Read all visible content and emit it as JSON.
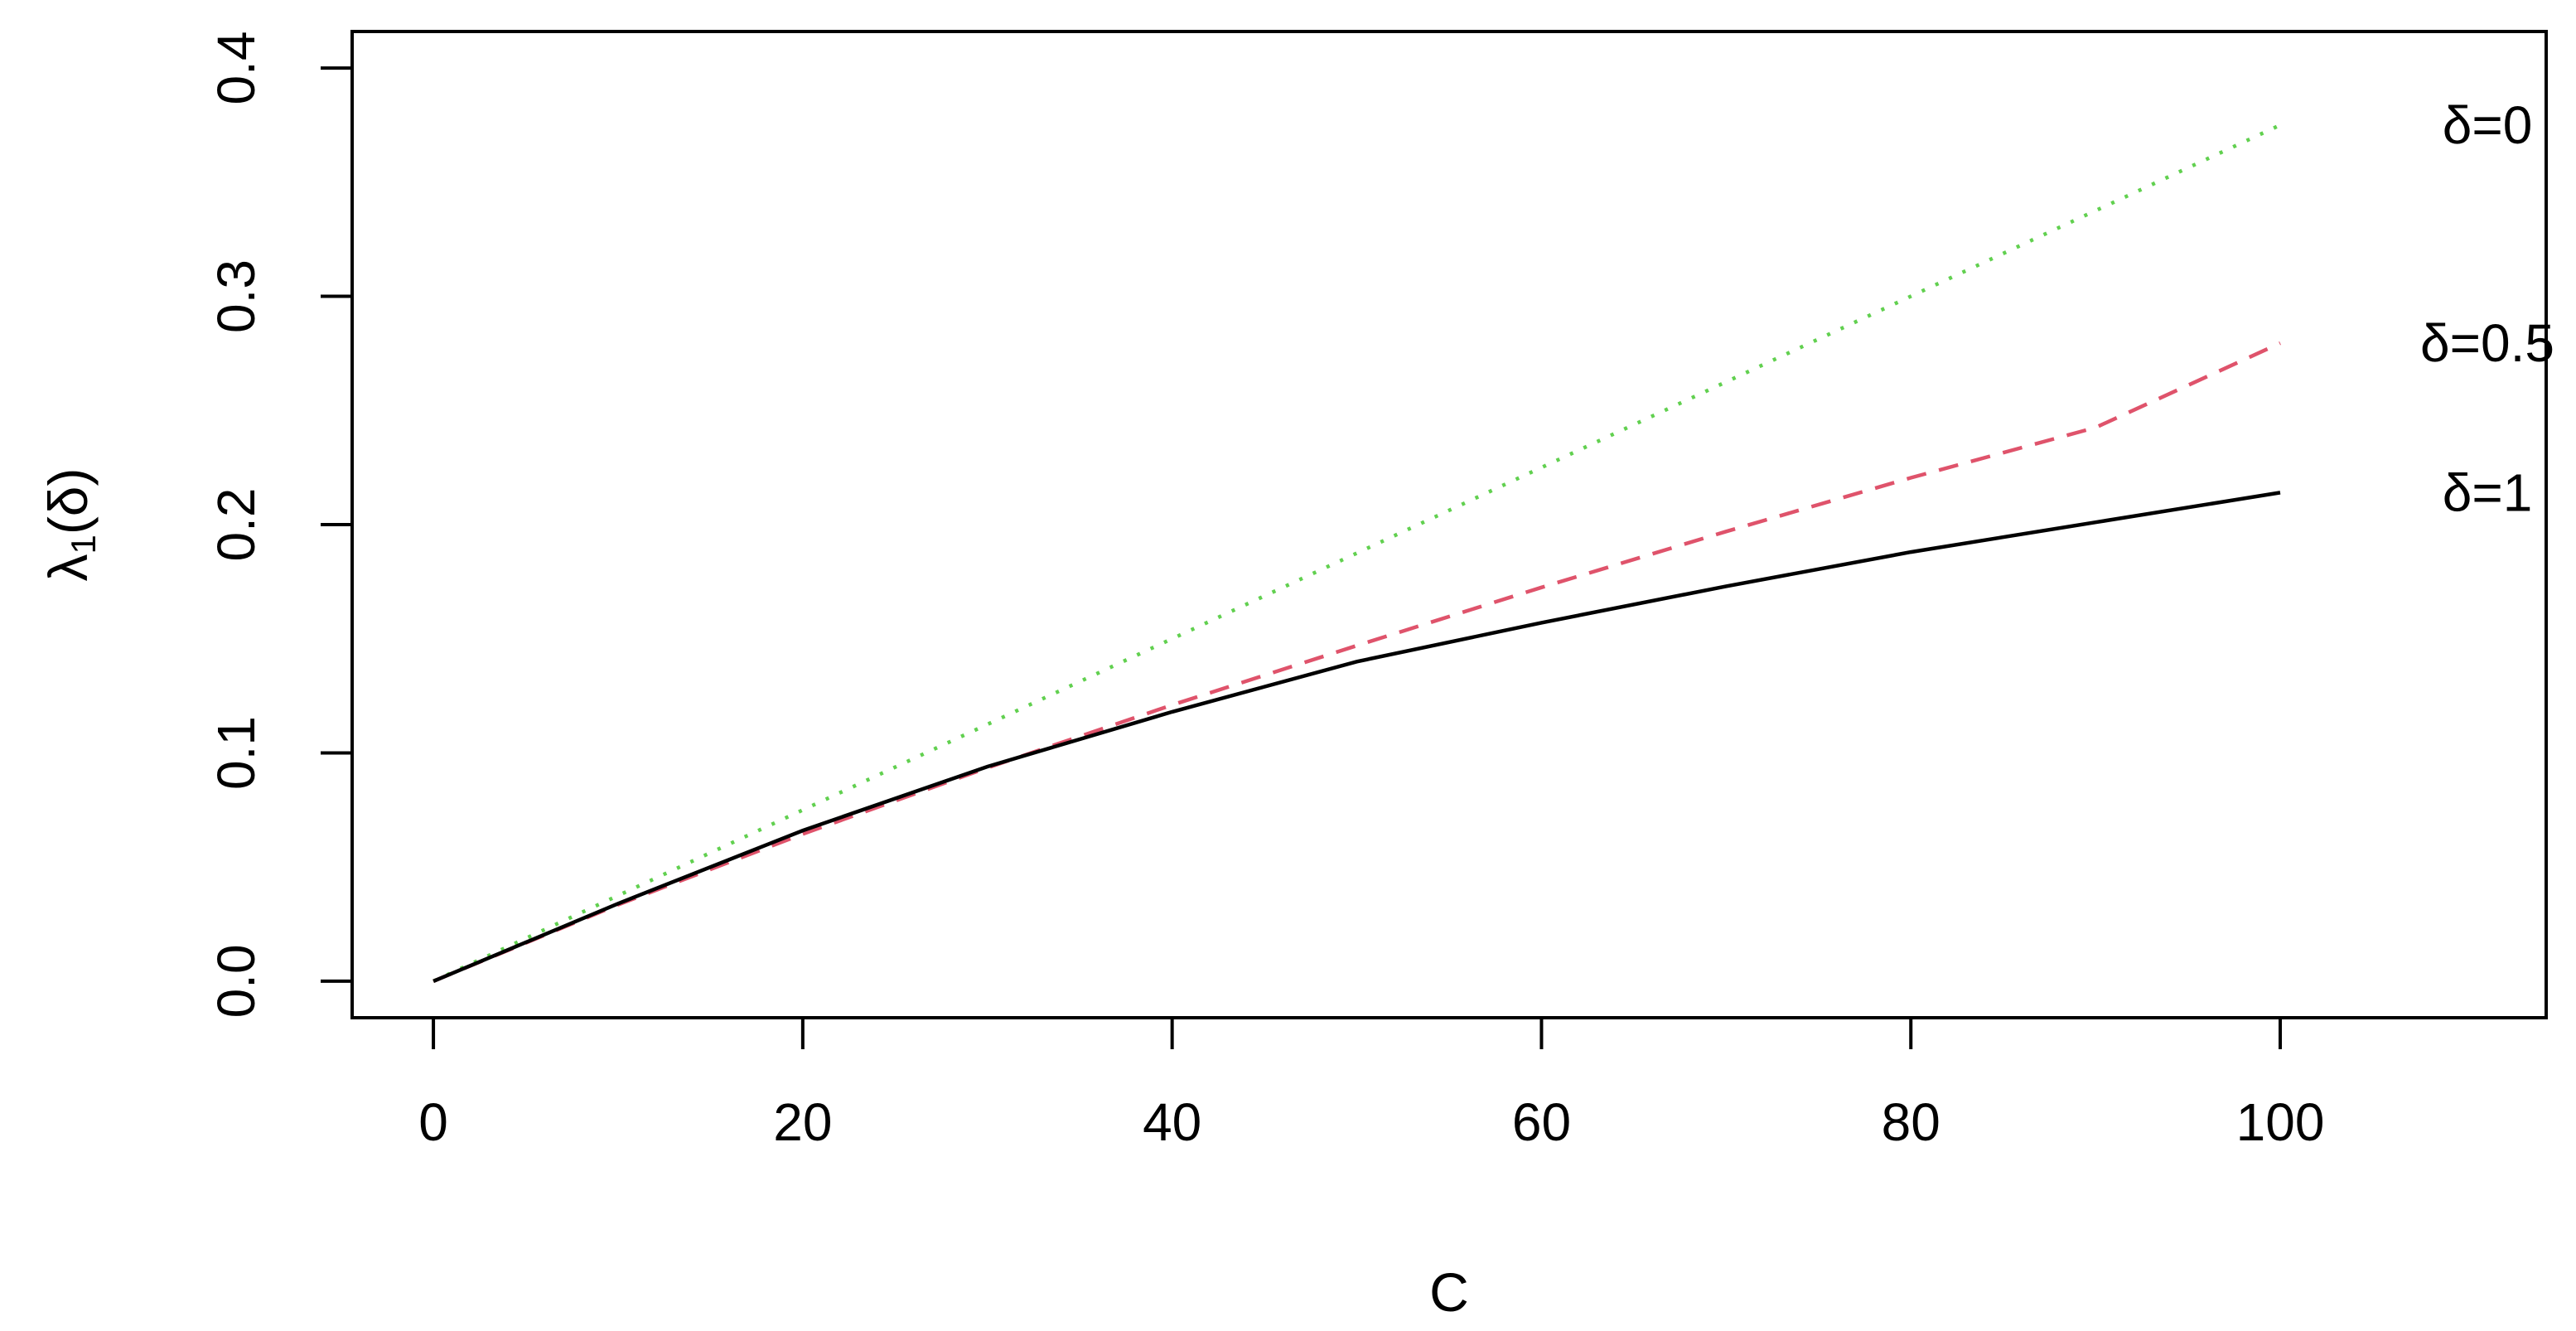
{
  "chart_data": {
    "type": "line",
    "title": "",
    "xlabel": "C",
    "ylabel": {
      "base": "λ",
      "subscript": "1",
      "suffix": "(δ)"
    },
    "xlim": [
      -4.4,
      114.4
    ],
    "ylim": [
      -0.016,
      0.416
    ],
    "xticks": [
      0,
      20,
      40,
      60,
      80,
      100
    ],
    "xtick_labels": [
      "0",
      "20",
      "40",
      "60",
      "80",
      "100"
    ],
    "yticks": [
      0.0,
      0.1,
      0.2,
      0.3,
      0.4
    ],
    "ytick_labels": [
      "0.0",
      "0.1",
      "0.2",
      "0.3",
      "0.4"
    ],
    "grid": false,
    "legend": "none; series labels placed at right ends of lines",
    "series": [
      {
        "name": "δ=0",
        "color": "#61D04F",
        "style": "dotted",
        "x": [
          0,
          10,
          20,
          30,
          40,
          50,
          60,
          70,
          80,
          90,
          100
        ],
        "values": [
          0,
          0.0375,
          0.075,
          0.1125,
          0.15,
          0.1875,
          0.225,
          0.2625,
          0.3,
          0.3375,
          0.375
        ]
      },
      {
        "name": "δ=0.5",
        "color": "#DF536B",
        "style": "dashed",
        "x": [
          0,
          10,
          20,
          30,
          40,
          50,
          60,
          70,
          80,
          90,
          100
        ],
        "values": [
          0,
          0.0335,
          0.0645,
          0.0935,
          0.121,
          0.147,
          0.1725,
          0.197,
          0.2205,
          0.2425,
          0.2795
        ]
      },
      {
        "name": "δ=1",
        "color": "#000000",
        "style": "solid",
        "x": [
          0,
          10,
          20,
          30,
          40,
          50,
          60,
          70,
          80,
          90,
          100
        ],
        "values": [
          0,
          0.034,
          0.066,
          0.094,
          0.118,
          0.14,
          0.157,
          0.173,
          0.188,
          0.201,
          0.214
        ]
      }
    ]
  }
}
